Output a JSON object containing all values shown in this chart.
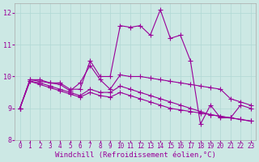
{
  "xlabel": "Windchill (Refroidissement éolien,°C)",
  "xlim": [
    -0.5,
    23.5
  ],
  "ylim": [
    8,
    12.3
  ],
  "yticks": [
    8,
    9,
    10,
    11,
    12
  ],
  "xticks": [
    0,
    1,
    2,
    3,
    4,
    5,
    6,
    7,
    8,
    9,
    10,
    11,
    12,
    13,
    14,
    15,
    16,
    17,
    18,
    19,
    20,
    21,
    22,
    23
  ],
  "bg_color": "#cce8e4",
  "line_color": "#990099",
  "grid_color": "#b0d8d4",
  "line1_y": [
    9.0,
    9.9,
    9.9,
    9.8,
    9.8,
    9.6,
    9.6,
    10.5,
    10.0,
    10.0,
    11.6,
    11.55,
    11.6,
    11.3,
    12.1,
    11.2,
    11.3,
    10.5,
    8.5,
    9.1,
    8.7,
    8.7,
    9.1,
    9.0
  ],
  "line2_y": [
    9.0,
    9.9,
    9.85,
    9.8,
    9.75,
    9.55,
    9.8,
    10.35,
    9.9,
    9.6,
    10.05,
    10.0,
    10.0,
    9.95,
    9.9,
    9.85,
    9.8,
    9.75,
    9.7,
    9.65,
    9.6,
    9.3,
    9.2,
    9.1
  ],
  "line3_y": [
    9.0,
    9.85,
    9.8,
    9.7,
    9.6,
    9.5,
    9.4,
    9.6,
    9.5,
    9.5,
    9.7,
    9.6,
    9.5,
    9.4,
    9.3,
    9.2,
    9.1,
    9.0,
    8.9,
    8.8,
    8.75,
    8.7,
    8.65,
    8.6
  ],
  "line4_y": [
    9.0,
    9.85,
    9.75,
    9.65,
    9.55,
    9.45,
    9.35,
    9.5,
    9.4,
    9.35,
    9.5,
    9.4,
    9.3,
    9.2,
    9.1,
    9.0,
    8.95,
    8.9,
    8.85,
    8.8,
    8.75,
    8.7,
    8.65,
    8.6
  ],
  "marker": "+",
  "markersize": 4,
  "linewidth": 0.8,
  "font_color": "#990099",
  "tick_fontsize": 5.5,
  "label_fontsize": 6.5
}
